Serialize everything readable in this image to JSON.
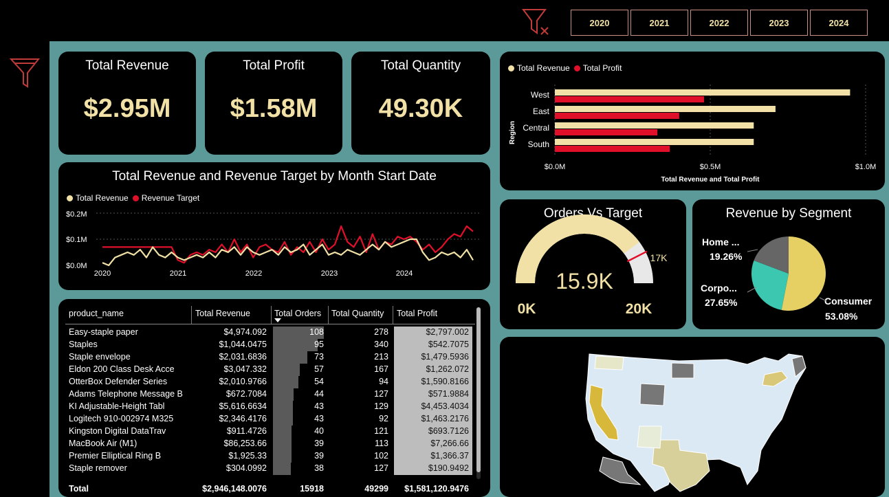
{
  "slicer": {
    "years": [
      "2020",
      "2021",
      "2022",
      "2023",
      "2024"
    ],
    "clear_icon": "clear-filter-icon"
  },
  "sidebar": {
    "filter_icon": "filter-icon"
  },
  "kpis": {
    "revenue": {
      "title": "Total Revenue",
      "value": "$2.95M"
    },
    "profit": {
      "title": "Total Profit",
      "value": "$1.58M"
    },
    "quantity": {
      "title": "Total Quantity",
      "value": "49.30K"
    }
  },
  "colors": {
    "revenue": "#f2e1a6",
    "profit": "#e0102a",
    "teal": "#3cc8b0",
    "grey": "#666666",
    "gold": "#e6cf63"
  },
  "region_chart": {
    "legend": [
      "Total Revenue",
      "Total Profit"
    ],
    "ylabel": "Region",
    "xlabel": "Total Revenue and Total Profit",
    "xticks": [
      "$0.0M",
      "$0.5M",
      "$1.0M"
    ]
  },
  "line_chart": {
    "title": "Total Revenue and Revenue Target by Month Start Date",
    "legend": [
      "Total Revenue",
      "Revenue Target"
    ],
    "yticks": [
      "$0.2M",
      "$0.1M",
      "$0.0M"
    ],
    "xticks": [
      "2020",
      "2021",
      "2022",
      "2023",
      "2024"
    ]
  },
  "gauge": {
    "title": "Orders Vs Target",
    "value_label": "15.9K",
    "min_label": "0K",
    "max_label": "20K",
    "target_label": "17K"
  },
  "segment": {
    "title": "Revenue by Segment",
    "labels": [
      {
        "name": "Home ...",
        "pct": "19.26%"
      },
      {
        "name": "Corpo...",
        "pct": "27.65%"
      },
      {
        "name": "Consumer",
        "pct": "53.08%"
      }
    ]
  },
  "table": {
    "columns": [
      "product_name",
      "Total Revenue",
      "Total Orders",
      "Total Quantity",
      "Total Profit"
    ],
    "rows": [
      [
        "Easy-staple paper",
        "$4,974.092",
        "108",
        "278",
        "$2,797.002"
      ],
      [
        "Staples",
        "$1,044.0475",
        "95",
        "340",
        "$542.7075"
      ],
      [
        "Staple envelope",
        "$2,031.6836",
        "73",
        "213",
        "$1,479.5936"
      ],
      [
        "Eldon 200 Class Desk Acce",
        "$3,047.332",
        "57",
        "167",
        "$1,262.072"
      ],
      [
        "OtterBox Defender Series",
        "$2,010.9766",
        "54",
        "94",
        "$1,590.8166"
      ],
      [
        "Adams Telephone Message B",
        "$672.7084",
        "44",
        "127",
        "$571.9884"
      ],
      [
        "KI Adjustable-Height Tabl",
        "$5,616.6634",
        "43",
        "129",
        "$4,453.4034"
      ],
      [
        "Logitech 910-002974 M325",
        "$2,346.4176",
        "43",
        "92",
        "$1,463.2176"
      ],
      [
        "Kingston Digital DataTrav",
        "$911.4726",
        "40",
        "121",
        "$693.7126"
      ],
      [
        "MacBook Air (M1)",
        "$86,253.66",
        "39",
        "113",
        "$7,266.66"
      ],
      [
        "Premier Elliptical Ring B",
        "$1,925.33",
        "39",
        "102",
        "$1,366.37"
      ],
      [
        "Staple remover",
        "$304.0992",
        "38",
        "127",
        "$190.9492"
      ]
    ],
    "total": [
      "Total",
      "$2,946,148.0076",
      "15918",
      "49299",
      "$1,581,120.9476"
    ]
  },
  "chart_data": [
    {
      "type": "bar",
      "orientation": "horizontal",
      "categories": [
        "West",
        "East",
        "Central",
        "South"
      ],
      "series": [
        {
          "name": "Total Revenue",
          "values": [
            0.95,
            0.71,
            0.64,
            0.64
          ]
        },
        {
          "name": "Total Profit",
          "values": [
            0.48,
            0.4,
            0.33,
            0.37
          ]
        }
      ],
      "xlabel": "Total Revenue and Total Profit",
      "ylabel": "Region",
      "xlim": [
        0,
        1.0
      ],
      "unit": "$M"
    },
    {
      "type": "line",
      "title": "Total Revenue and Revenue Target by Month Start Date",
      "x": [
        "2020-01",
        "2020-02",
        "2020-03",
        "2020-04",
        "2020-05",
        "2020-06",
        "2020-07",
        "2020-08",
        "2020-09",
        "2020-10",
        "2020-11",
        "2020-12",
        "2021-01",
        "2021-02",
        "2021-03",
        "2021-04",
        "2021-05",
        "2021-06",
        "2021-07",
        "2021-08",
        "2021-09",
        "2021-10",
        "2021-11",
        "2021-12",
        "2022-01",
        "2022-02",
        "2022-03",
        "2022-04",
        "2022-05",
        "2022-06",
        "2022-07",
        "2022-08",
        "2022-09",
        "2022-10",
        "2022-11",
        "2022-12",
        "2023-01",
        "2023-02",
        "2023-03",
        "2023-04",
        "2023-05",
        "2023-06",
        "2023-07",
        "2023-08",
        "2023-09",
        "2023-10",
        "2023-11",
        "2023-12",
        "2024-01",
        "2024-02",
        "2024-03",
        "2024-04",
        "2024-05",
        "2024-06",
        "2024-07",
        "2024-08",
        "2024-09",
        "2024-10",
        "2024-11",
        "2024-12"
      ],
      "series": [
        {
          "name": "Total Revenue",
          "values": [
            0.01,
            0.0,
            0.03,
            0.04,
            0.05,
            0.04,
            0.06,
            0.03,
            0.07,
            0.04,
            0.03,
            0.05,
            0.03,
            0.02,
            0.03,
            0.04,
            0.03,
            0.05,
            0.03,
            0.06,
            0.05,
            0.07,
            0.04,
            0.07,
            0.05,
            0.04,
            0.05,
            0.06,
            0.04,
            0.07,
            0.05,
            0.06,
            0.08,
            0.04,
            0.06,
            0.08,
            0.04,
            0.05,
            0.04,
            0.06,
            0.05,
            0.04,
            0.06,
            0.08,
            0.06,
            0.09,
            0.07,
            0.08,
            0.09,
            0.1,
            0.1,
            0.05,
            0.02,
            0.03,
            0.05,
            0.04,
            0.05,
            0.03,
            0.06,
            0.02
          ]
        },
        {
          "name": "Revenue Target",
          "values": [
            0.07,
            0.07,
            0.07,
            0.07,
            0.07,
            0.07,
            0.07,
            0.07,
            0.07,
            0.07,
            0.07,
            0.07,
            0.02,
            0.01,
            0.04,
            0.05,
            0.04,
            0.06,
            0.05,
            0.08,
            0.05,
            0.1,
            0.05,
            0.08,
            0.03,
            0.07,
            0.08,
            0.06,
            0.05,
            0.09,
            0.04,
            0.07,
            0.05,
            0.09,
            0.05,
            0.1,
            0.06,
            0.08,
            0.15,
            0.09,
            0.07,
            0.11,
            0.05,
            0.12,
            0.06,
            0.09,
            0.08,
            0.11,
            0.1,
            0.11,
            0.09,
            0.06,
            0.08,
            0.05,
            0.07,
            0.1,
            0.12,
            0.11,
            0.15,
            0.13
          ]
        }
      ],
      "ylim": [
        0,
        0.2
      ],
      "unit": "$M"
    },
    {
      "type": "gauge",
      "value": 15.9,
      "min": 0,
      "max": 20,
      "target": 17,
      "unit": "K"
    },
    {
      "type": "pie",
      "categories": [
        "Consumer",
        "Corpo...",
        "Home ..."
      ],
      "values": [
        53.08,
        27.65,
        19.26
      ]
    }
  ]
}
